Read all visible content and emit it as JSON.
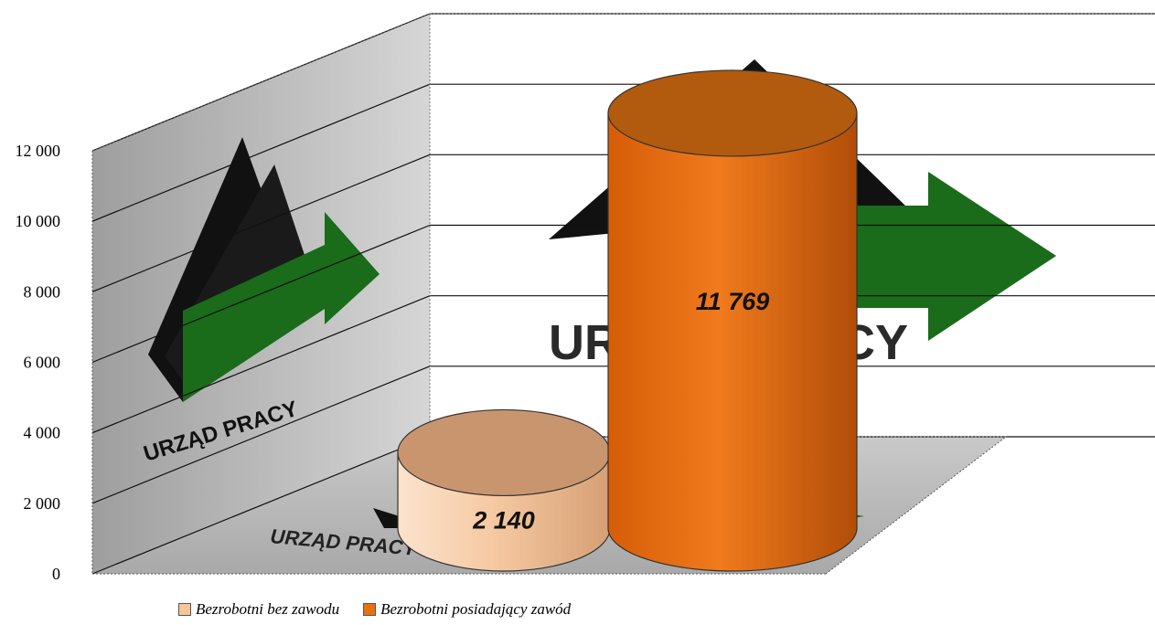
{
  "chart_data": {
    "type": "bar",
    "style": "3d-cylinder",
    "categories": [
      "Bezrobotni bez zawodu",
      "Bezrobotni posiadający zawód"
    ],
    "values": [
      2140,
      11769
    ],
    "data_labels": [
      "2 140",
      "11 769"
    ],
    "yticks": [
      "0",
      "2 000",
      "4 000",
      "6 000",
      "8 000",
      "10 000",
      "12 000"
    ],
    "ylim": [
      0,
      12000
    ],
    "grid": true,
    "legend_position": "bottom",
    "colors": {
      "series1": "#f5c59c",
      "series2": "#e8720e",
      "arrow": "#1a6b1a",
      "wall": "#c8c8c8"
    }
  },
  "legend": [
    {
      "label": "Bezrobotni bez zawodu",
      "color": "#f5c59c"
    },
    {
      "label": "Bezrobotni posiadający zawód",
      "color": "#e8720e"
    }
  ],
  "watermark": {
    "text": "URZĄD PRACY"
  }
}
